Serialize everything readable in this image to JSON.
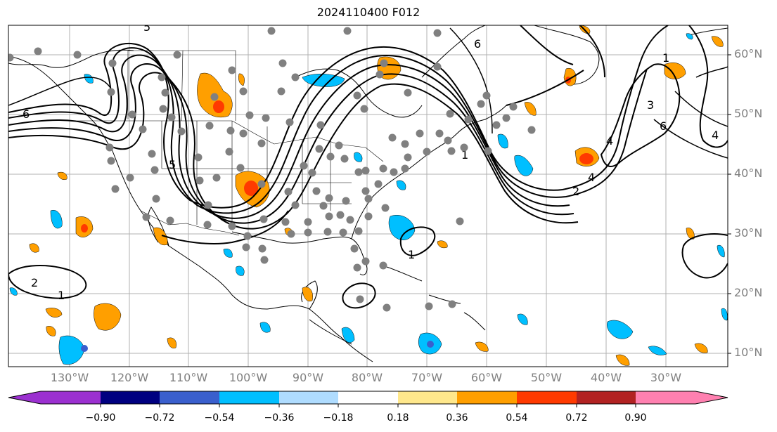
{
  "title": "2024110400 F012",
  "lat_labels": [
    "60°N",
    "50°N",
    "40°N",
    "30°N",
    "20°N",
    "10°N"
  ],
  "lon_labels": [
    "130°W",
    "120°W",
    "110°W",
    "100°W",
    "90°W",
    "80°W",
    "70°W",
    "60°W",
    "50°W",
    "40°W",
    "30°W"
  ],
  "contour_labels": [
    "6",
    "5",
    "4",
    "3",
    "2",
    "1"
  ],
  "colorbar": {
    "colors": [
      "#9b30d0",
      "#000080",
      "#3a5fcd",
      "#00bfff",
      "#afdcff",
      "#ffffff",
      "#ffe88c",
      "#ff9f00",
      "#ff3a00",
      "#b22222",
      "#ff80b0"
    ],
    "tick_labels": [
      "−0.90",
      "−0.72",
      "−0.54",
      "−0.36",
      "−0.18",
      "0.18",
      "0.36",
      "0.54",
      "0.72",
      "0.90"
    ]
  },
  "legend_colors": {
    "positive": "#ff9f00",
    "positive_strong": "#ff3a00",
    "negative": "#00bfff",
    "negative_strong": "#3a5fcd",
    "station": "#808080"
  }
}
